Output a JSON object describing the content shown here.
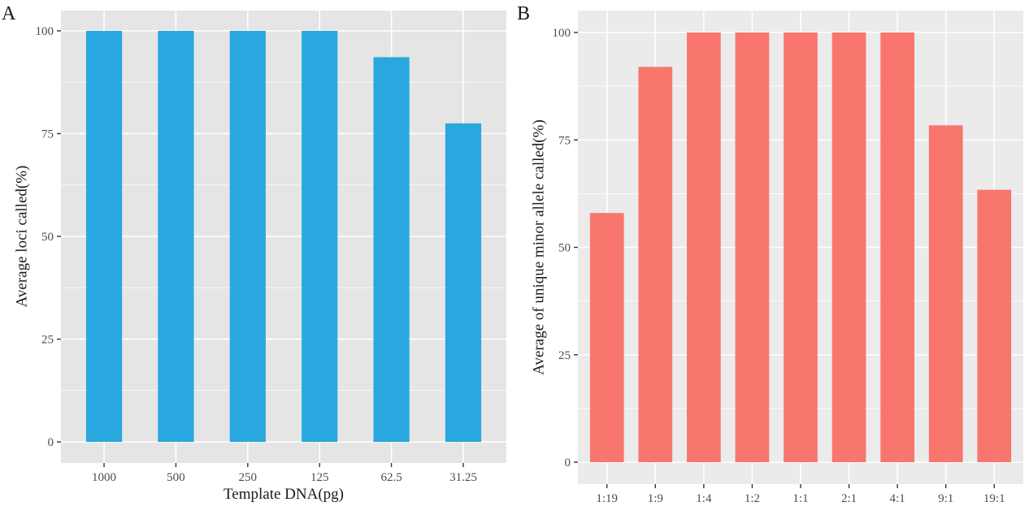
{
  "figure": {
    "panels": [
      "A",
      "B"
    ]
  },
  "chart_data": [
    {
      "panel": "A",
      "type": "bar",
      "title": "",
      "xlabel": "Template DNA(pg)",
      "ylabel": "Average loci called(%)",
      "categories": [
        "1000",
        "500",
        "250",
        "125",
        "62.5",
        "31.25"
      ],
      "values": [
        100,
        100,
        100,
        100,
        93.6,
        77.5
      ],
      "ylim": [
        0,
        100
      ],
      "yticks": [
        0,
        25,
        50,
        75,
        100
      ],
      "ytick_labels": [
        "0",
        "25",
        "50",
        "75",
        "100"
      ],
      "grid": true,
      "legend": "none",
      "color": "#29a8df",
      "background": "#e5e5e5"
    },
    {
      "panel": "B",
      "type": "bar",
      "title": "",
      "xlabel": "",
      "ylabel": "Average of unique minor allele called(%)",
      "categories": [
        "1:19",
        "1:9",
        "1:4",
        "1:2",
        "1:1",
        "2:1",
        "4:1",
        "9:1",
        "19:1"
      ],
      "values": [
        58,
        92,
        100,
        100,
        100,
        100,
        100,
        78.4,
        63.4
      ],
      "ylim": [
        0,
        100
      ],
      "yticks": [
        0,
        25,
        50,
        75,
        100
      ],
      "ytick_labels": [
        "0",
        "25",
        "50",
        "75",
        "100"
      ],
      "grid": true,
      "legend": "none",
      "color": "#f8766d",
      "background": "#ebebeb"
    }
  ]
}
